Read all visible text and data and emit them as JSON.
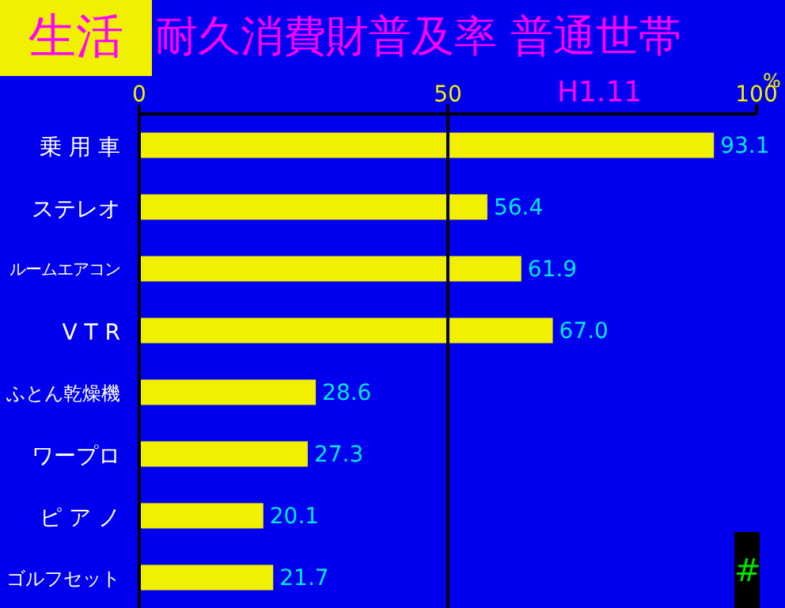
{
  "chart_data": {
    "type": "bar",
    "orientation": "horizontal",
    "title": "耐久消費財普及率 普通世帯",
    "subtitle": "H1.11",
    "xlabel": "%",
    "categories": [
      "乗 用 車",
      "ステレオ",
      "ルームエアコン",
      "V T R",
      "ふとん乾燥機",
      "ワープロ",
      "ピ ア ノ",
      "ゴルフセット"
    ],
    "values": [
      93.1,
      56.4,
      61.9,
      67.0,
      28.6,
      27.3,
      20.1,
      21.7
    ],
    "value_labels": [
      "93.1",
      "56.4",
      "61.9",
      "67.0",
      "28.6",
      "27.3",
      "20.1",
      "21.7"
    ],
    "color": "#f0f000",
    "xlim": [
      0,
      100
    ],
    "xticks": [
      0,
      50,
      100
    ],
    "ref_lines": [
      {
        "axis": "x",
        "value": 50,
        "color": "#000000"
      }
    ],
    "annotations": [
      "生活",
      "#"
    ]
  }
}
